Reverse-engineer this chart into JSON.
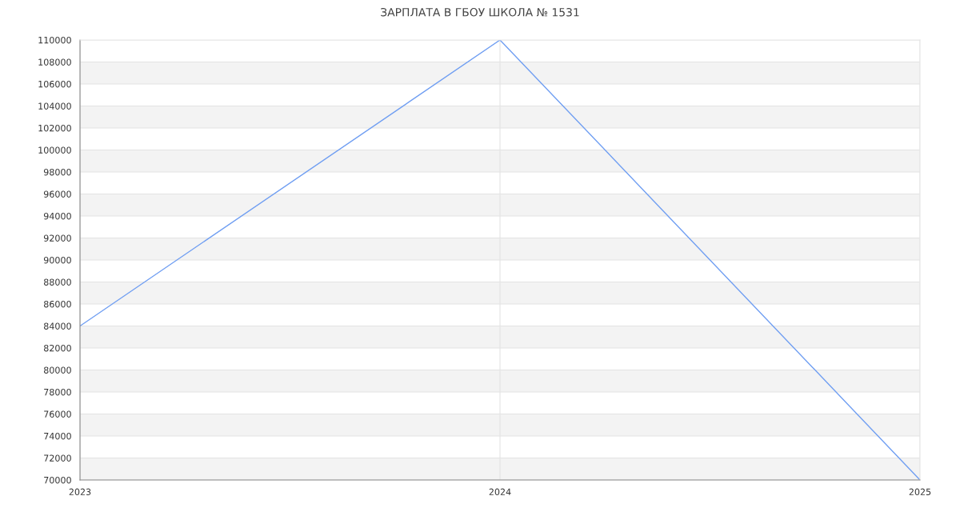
{
  "chart_data": {
    "type": "line",
    "title": "ЗАРПЛАТА В ГБОУ ШКОЛА № 1531",
    "x": [
      2023,
      2024,
      2025
    ],
    "series": [
      {
        "color": "#6f9ef2",
        "values": [
          84000,
          110000,
          70000
        ]
      }
    ],
    "xlim": [
      2023,
      2025
    ],
    "xticks": [
      2023,
      2024,
      2025
    ],
    "ylim": [
      70000,
      110000
    ],
    "yticks": [
      70000,
      72000,
      74000,
      76000,
      78000,
      80000,
      82000,
      84000,
      86000,
      88000,
      90000,
      92000,
      94000,
      96000,
      98000,
      100000,
      102000,
      104000,
      106000,
      108000,
      110000
    ],
    "grid": true,
    "marker": "none",
    "line_style": "solid"
  }
}
